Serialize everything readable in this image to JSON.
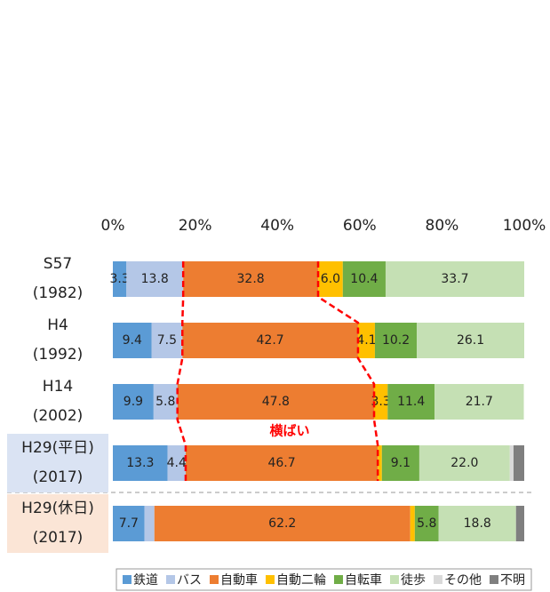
{
  "chart_data": {
    "type": "stacked-bar-horizontal",
    "categories": [
      "S57\n(1982)",
      "H4\n(1992)",
      "H14\n(2002)",
      "H29(平日)\n(2017)",
      "H29(休日)\n(2017)"
    ],
    "category_colors": [
      null,
      null,
      null,
      "#dae3f3",
      "#fbe5d6"
    ],
    "xlim": [
      0,
      100
    ],
    "xticks": [
      {
        "value": 0,
        "label": "0%"
      },
      {
        "value": 20,
        "label": "20%"
      },
      {
        "value": 40,
        "label": "40%"
      },
      {
        "value": 60,
        "label": "60%"
      },
      {
        "value": 80,
        "label": "80%"
      },
      {
        "value": 100,
        "label": "100%"
      }
    ],
    "series": [
      {
        "name": "鉄道",
        "color": "#5b9bd5",
        "values": [
          3.3,
          9.4,
          9.9,
          13.3,
          7.7
        ],
        "value_labels": [
          "3.3",
          "9.4",
          "9.9",
          "13.3",
          "7.7"
        ]
      },
      {
        "name": "バス",
        "color": "#b4c7e7",
        "values": [
          13.8,
          7.5,
          5.8,
          4.4,
          2.4
        ],
        "value_labels": [
          "13.8",
          "7.5",
          "5.8",
          "4.4",
          null
        ]
      },
      {
        "name": "自動車",
        "color": "#ed7d31",
        "values": [
          32.8,
          42.7,
          47.8,
          46.7,
          62.2
        ],
        "value_labels": [
          "32.8",
          "42.7",
          "47.8",
          "46.7",
          "62.2"
        ]
      },
      {
        "name": "自動二輪",
        "color": "#ffc000",
        "values": [
          6.0,
          4.1,
          3.3,
          1.0,
          1.1
        ],
        "value_labels": [
          "6.0",
          "4.1",
          "3.3",
          null,
          null
        ]
      },
      {
        "name": "自転車",
        "color": "#70ad47",
        "values": [
          10.4,
          10.2,
          11.4,
          9.1,
          5.8
        ],
        "value_labels": [
          "10.4",
          "10.2",
          "11.4",
          "9.1",
          "5.8"
        ]
      },
      {
        "name": "徒歩",
        "color": "#c5e0b4",
        "values": [
          33.7,
          26.1,
          21.7,
          22.0,
          18.8
        ],
        "value_labels": [
          "33.7",
          "26.1",
          "21.7",
          "22.0",
          "18.8"
        ]
      },
      {
        "name": "その他",
        "color": "#d9d9d9",
        "values": [
          0,
          0,
          0,
          0.9,
          0
        ],
        "value_labels": [
          null,
          null,
          null,
          null,
          null
        ]
      },
      {
        "name": "不明",
        "color": "#7f7f7f",
        "values": [
          0,
          0,
          0,
          2.6,
          2.0
        ],
        "value_labels": [
          null,
          null,
          null,
          null,
          null
        ]
      }
    ],
    "annotation": "横ばい",
    "annotation_color": "#ff0000",
    "legend": "bottom"
  }
}
